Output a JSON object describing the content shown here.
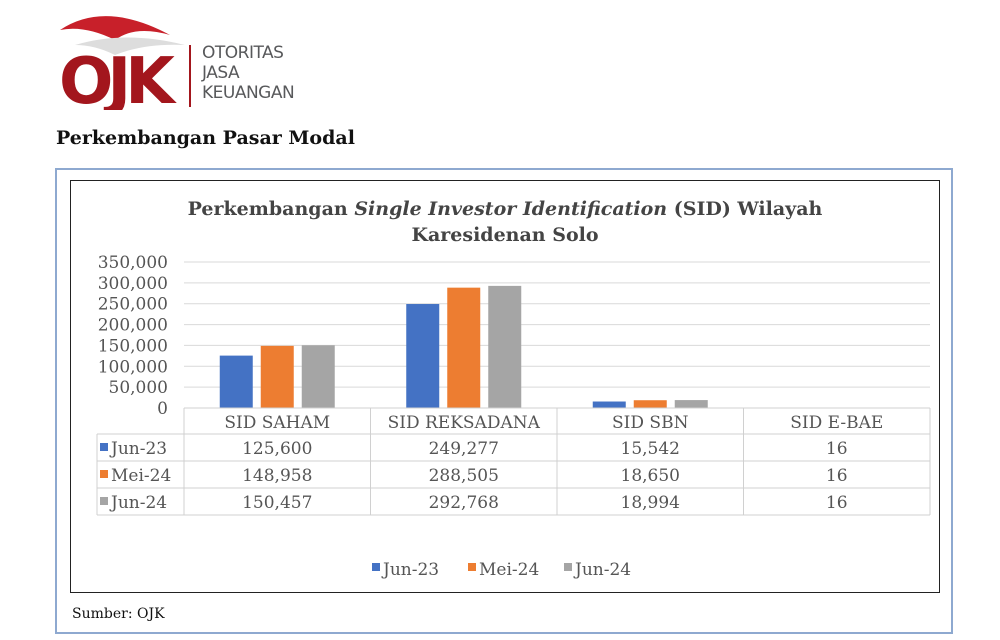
{
  "logo": {
    "mark": "OJK",
    "lines": [
      "OTORITAS",
      "JASA",
      "KEUANGAN"
    ]
  },
  "page_title": "Perkembangan Pasar Modal",
  "source": "Sumber: OJK",
  "colors": {
    "Jun-23": "#4472c4",
    "Mei-24": "#ed7d31",
    "Jun-24": "#a5a5a5"
  },
  "chart_data": {
    "type": "bar",
    "title_parts": [
      "Perkembangan ",
      "Single Investor Identification",
      " (SID) Wilayah",
      "Karesidenan Solo"
    ],
    "categories": [
      "SID SAHAM",
      "SID REKSADANA",
      "SID SBN",
      "SID E-BAE"
    ],
    "series": [
      {
        "name": "Jun-23",
        "values": [
          125600,
          249277,
          15542,
          16
        ],
        "labels": [
          "125,600",
          "249,277",
          "15,542",
          "16"
        ]
      },
      {
        "name": "Mei-24",
        "values": [
          148958,
          288505,
          18650,
          16
        ],
        "labels": [
          "148,958",
          "288,505",
          "18,650",
          "16"
        ]
      },
      {
        "name": "Jun-24",
        "values": [
          150457,
          292768,
          18994,
          16
        ],
        "labels": [
          "150,457",
          "292,768",
          "18,994",
          "16"
        ]
      }
    ],
    "ylim": [
      0,
      350000
    ],
    "yticks": [
      "0",
      "50,000",
      "100,000",
      "150,000",
      "200,000",
      "250,000",
      "300,000",
      "350,000"
    ],
    "grid": true,
    "legend": "bottom",
    "data_table": true
  }
}
